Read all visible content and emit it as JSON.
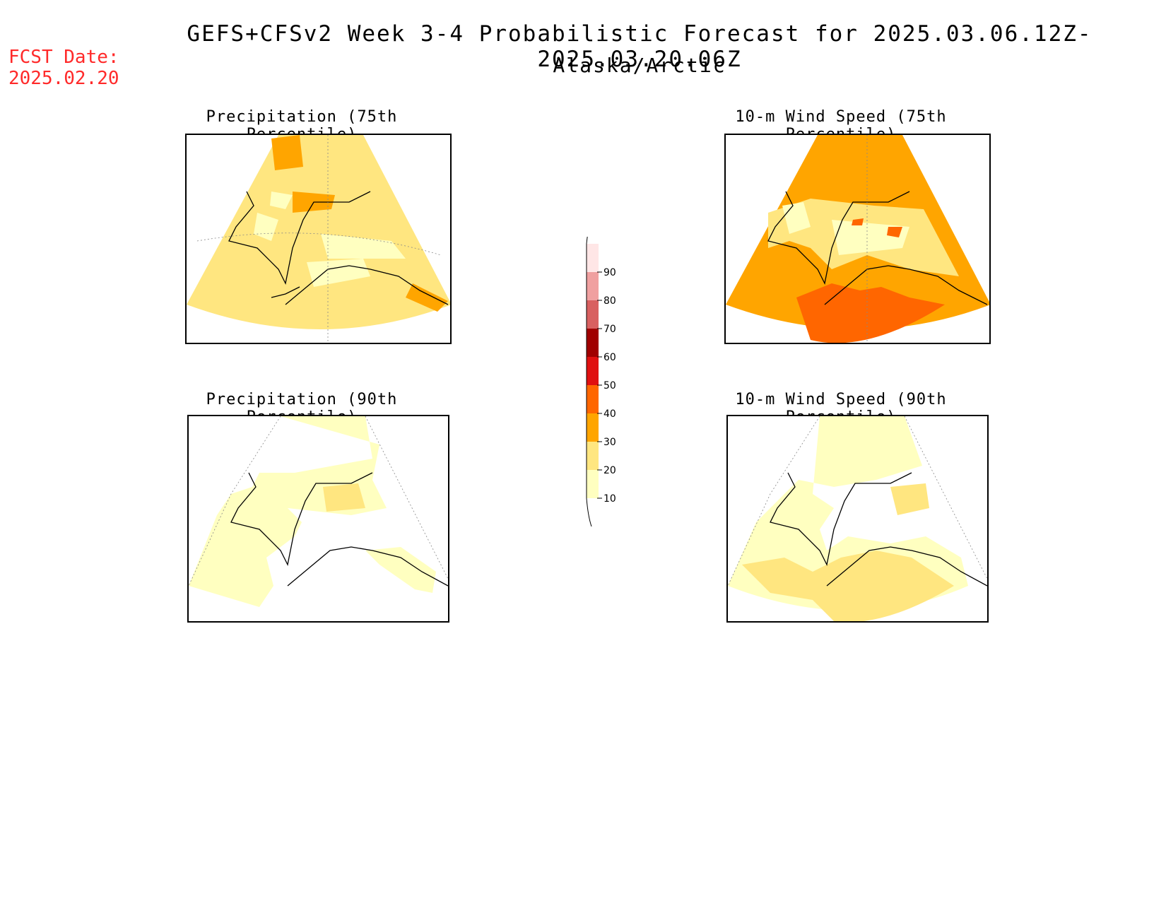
{
  "header": {
    "title": "GEFS+CFSv2 Week 3-4 Probabilistic Forecast for 2025.03.06.12Z-2025.03.20.06Z",
    "subtitle": "Alaska/Arctic",
    "fcst_label": "FCST Date:",
    "fcst_date": "2025.02.20"
  },
  "panels": [
    {
      "title": "Precipitation (75th Percentile)"
    },
    {
      "title": "10-m Wind Speed (75th Percentile)"
    },
    {
      "title": "Precipitation (90th Percentile)"
    },
    {
      "title": "10-m Wind Speed (90th Percentile)"
    }
  ],
  "colorbar": {
    "levels": [
      "10",
      "20",
      "30",
      "40",
      "50",
      "60",
      "70",
      "80",
      "90"
    ],
    "colors": [
      "#ffffc0",
      "#ffe680",
      "#ffa500",
      "#ff6600",
      "#e01010",
      "#a00000",
      "#d86060",
      "#f0a0a0",
      "#ffe6e6"
    ]
  }
}
